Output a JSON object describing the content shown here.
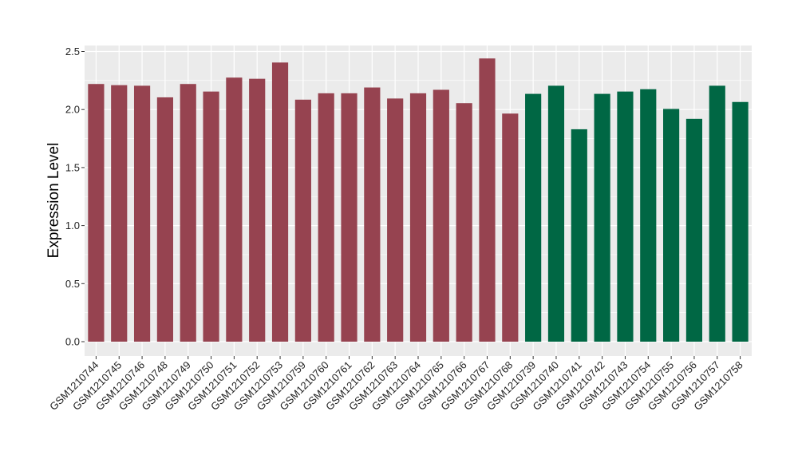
{
  "chart_data": {
    "type": "bar",
    "title": "",
    "xlabel": "",
    "ylabel": "Expression Level",
    "ylim": [
      0,
      2.55
    ],
    "yticks": [
      "0.0",
      "0.5",
      "1.0",
      "1.5",
      "2.0",
      "2.5"
    ],
    "grid": true,
    "legend": "none",
    "categories": [
      "GSM1210744",
      "GSM1210745",
      "GSM1210746",
      "GSM1210748",
      "GSM1210749",
      "GSM1210750",
      "GSM1210751",
      "GSM1210752",
      "GSM1210753",
      "GSM1210759",
      "GSM1210760",
      "GSM1210761",
      "GSM1210762",
      "GSM1210763",
      "GSM1210764",
      "GSM1210765",
      "GSM1210766",
      "GSM1210767",
      "GSM1210768",
      "GSM1210739",
      "GSM1210740",
      "GSM1210741",
      "GSM1210742",
      "GSM1210743",
      "GSM1210754",
      "GSM1210755",
      "GSM1210756",
      "GSM1210757",
      "GSM1210758"
    ],
    "values": [
      2.22,
      2.21,
      2.205,
      2.105,
      2.22,
      2.155,
      2.275,
      2.265,
      2.405,
      2.085,
      2.14,
      2.14,
      2.19,
      2.095,
      2.14,
      2.17,
      2.055,
      2.44,
      1.965,
      2.135,
      2.205,
      1.83,
      2.135,
      2.155,
      2.175,
      2.005,
      1.92,
      2.205,
      2.065
    ],
    "groups": [
      "a",
      "a",
      "a",
      "a",
      "a",
      "a",
      "a",
      "a",
      "a",
      "a",
      "a",
      "a",
      "a",
      "a",
      "a",
      "a",
      "a",
      "a",
      "a",
      "b",
      "b",
      "b",
      "b",
      "b",
      "b",
      "b",
      "b",
      "b",
      "b"
    ],
    "colors": {
      "a": "#964350",
      "b": "#006744",
      "panel": "#ebebeb",
      "grid": "#ffffff"
    }
  }
}
